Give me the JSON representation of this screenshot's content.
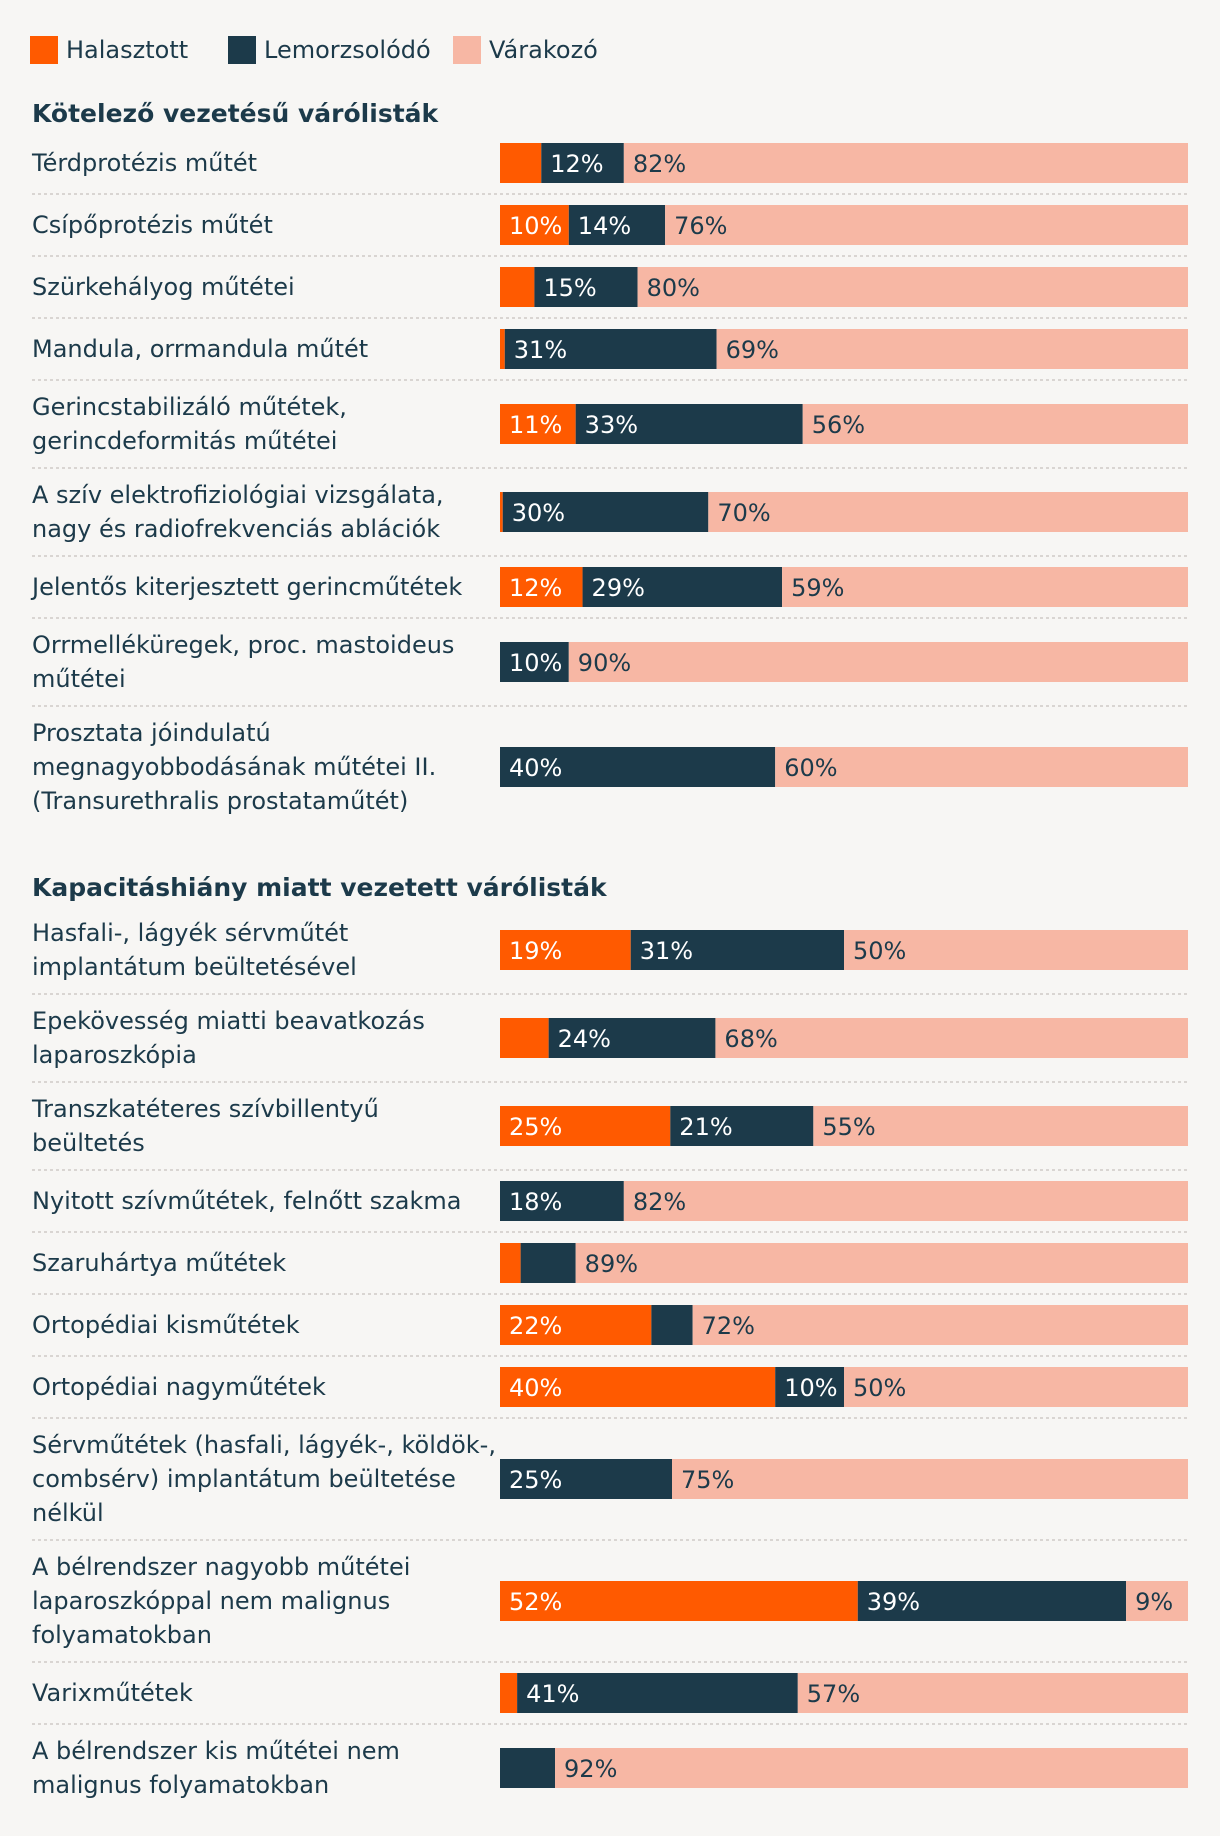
{
  "colors": {
    "halasztott": "#ff5a00",
    "lemorzsolodo": "#1c3a4a",
    "varakozo": "#f7b7a4",
    "text": "#1c3a4a",
    "divider": "#cfcac6"
  },
  "chart_data": {
    "type": "bar",
    "orientation": "horizontal",
    "stacked": true,
    "unit": "%",
    "legend": [
      {
        "key": "halasztott",
        "label": "Halasztott"
      },
      {
        "key": "lemorzsolodo",
        "label": "Lemorzsolódó"
      },
      {
        "key": "varakozo",
        "label": "Várakozó"
      }
    ],
    "legend_position": "top-left",
    "groups": [
      {
        "title": "Kötelező vezetésű várólisták",
        "rows": [
          {
            "label": [
              "Térdprotézis műtét"
            ],
            "values": [
              6,
              12,
              82
            ],
            "labels": [
              "",
              "12%",
              "82%"
            ]
          },
          {
            "label": [
              "Csípőprotézis műtét"
            ],
            "values": [
              10,
              14,
              76
            ],
            "labels": [
              "10%",
              "14%",
              "76%"
            ]
          },
          {
            "label": [
              "Szürkehályog műtétei"
            ],
            "values": [
              5,
              15,
              80
            ],
            "labels": [
              "",
              "15%",
              "80%"
            ]
          },
          {
            "label": [
              "Mandula, orrmandula műtét"
            ],
            "values": [
              0.7,
              31,
              69
            ],
            "labels": [
              "",
              "31%",
              "69%"
            ]
          },
          {
            "label": [
              "Gerincstabilizáló műtétek,",
              "gerincdeformitás műtétei"
            ],
            "values": [
              11,
              33,
              56
            ],
            "labels": [
              "11%",
              "33%",
              "56%"
            ]
          },
          {
            "label": [
              "A szív elektrofiziológiai vizsgálata,",
              "nagy és radiofrekvenciás ablációk"
            ],
            "values": [
              0.4,
              30,
              70
            ],
            "labels": [
              "",
              "30%",
              "70%"
            ]
          },
          {
            "label": [
              "Jelentős kiterjesztett gerincműtétek"
            ],
            "values": [
              12,
              29,
              59
            ],
            "labels": [
              "12%",
              "29%",
              "59%"
            ]
          },
          {
            "label": [
              "Orrmelléküregek, proc. mastoideus",
              "műtétei"
            ],
            "values": [
              0,
              10,
              90
            ],
            "labels": [
              "",
              "10%",
              "90%"
            ]
          },
          {
            "label": [
              "Prosztata jóindulatú",
              "megnagyobbodásának műtétei II.",
              "(Transurethralis prostataműtét)"
            ],
            "values": [
              0,
              40,
              60
            ],
            "labels": [
              "",
              "40%",
              "60%"
            ]
          }
        ]
      },
      {
        "title": "Kapacitáshiány miatt vezetett várólisták",
        "rows": [
          {
            "label": [
              "Hasfali-, lágyék sérvműtét",
              "implantátum beültetésével"
            ],
            "values": [
              19,
              31,
              50
            ],
            "labels": [
              "19%",
              "31%",
              "50%"
            ]
          },
          {
            "label": [
              "Epekövesség miatti beavatkozás",
              "laparoszkópia"
            ],
            "values": [
              7,
              24,
              68
            ],
            "labels": [
              "",
              "24%",
              "68%"
            ]
          },
          {
            "label": [
              "Transzkatéteres szívbillentyű",
              "beültetés"
            ],
            "values": [
              25,
              21,
              55
            ],
            "labels": [
              "25%",
              "21%",
              "55%"
            ]
          },
          {
            "label": [
              "Nyitott szívműtétek, felnőtt szakma"
            ],
            "values": [
              0,
              18,
              82
            ],
            "labels": [
              "",
              "18%",
              "82%"
            ]
          },
          {
            "label": [
              "Szaruhártya műtétek"
            ],
            "values": [
              3,
              8,
              89
            ],
            "labels": [
              "",
              "",
              "89%"
            ]
          },
          {
            "label": [
              "Ortopédiai kisműtétek"
            ],
            "values": [
              22,
              6,
              72
            ],
            "labels": [
              "22%",
              "",
              "72%"
            ]
          },
          {
            "label": [
              "Ortopédiai nagyműtétek"
            ],
            "values": [
              40,
              10,
              50
            ],
            "labels": [
              "40%",
              "10%",
              "50%"
            ]
          },
          {
            "label": [
              "Sérvműtétek (hasfali, lágyék-, köldök-,",
              "combsérv) implantátum beültetése",
              "nélkül"
            ],
            "values": [
              0,
              25,
              75
            ],
            "labels": [
              "",
              "25%",
              "75%"
            ]
          },
          {
            "label": [
              "A bélrendszer nagyobb műtétei",
              "laparoszkóppal nem malignus",
              "folyamatokban"
            ],
            "values": [
              52,
              39,
              9
            ],
            "labels": [
              "52%",
              "39%",
              "9%"
            ]
          },
          {
            "label": [
              "Varixműtétek"
            ],
            "values": [
              2.5,
              41,
              57
            ],
            "labels": [
              "",
              "41%",
              "57%"
            ]
          },
          {
            "label": [
              "A bélrendszer kis műtétei nem",
              "malignus folyamatokban"
            ],
            "values": [
              0,
              8,
              92
            ],
            "labels": [
              "",
              "",
              "92%"
            ]
          }
        ]
      }
    ]
  }
}
